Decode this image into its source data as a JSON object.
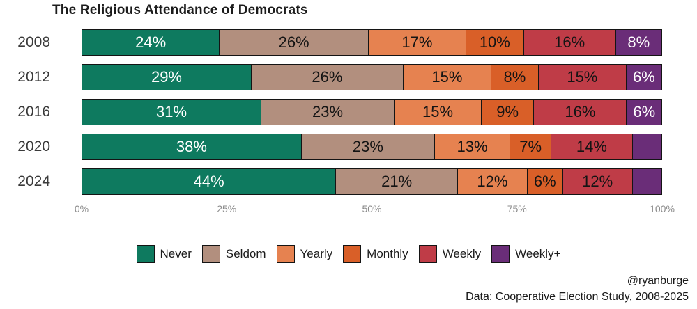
{
  "title": "The Religious Attendance of Democrats",
  "footer": {
    "credit": "@ryanburge",
    "source": "Data: Cooperative Election Study, 2008-2025"
  },
  "chart_data": {
    "type": "bar",
    "orientation": "horizontal",
    "stacked": true,
    "title": "The Religious Attendance of Democrats",
    "categories": [
      "2008",
      "2012",
      "2016",
      "2020",
      "2024"
    ],
    "series": [
      {
        "name": "Never",
        "color": "#0e7a5f",
        "label_color": "#ffffff",
        "values": [
          24,
          29,
          31,
          38,
          44
        ]
      },
      {
        "name": "Seldom",
        "color": "#b28f7e",
        "label_color": "#141414",
        "values": [
          26,
          26,
          23,
          23,
          21
        ]
      },
      {
        "name": "Yearly",
        "color": "#e68250",
        "label_color": "#141414",
        "values": [
          17,
          15,
          15,
          13,
          12
        ]
      },
      {
        "name": "Monthly",
        "color": "#d95f28",
        "label_color": "#141414",
        "values": [
          10,
          8,
          9,
          7,
          6
        ]
      },
      {
        "name": "Weekly",
        "color": "#bf3c47",
        "label_color": "#141414",
        "values": [
          16,
          15,
          16,
          14,
          12
        ]
      },
      {
        "name": "Weekly+",
        "color": "#6a2d78",
        "label_color": "#ffffff",
        "values": [
          8,
          6,
          6,
          5,
          5
        ]
      }
    ],
    "label_suffix": "%",
    "label_min_value": 6,
    "x_tick_labels": [
      "0%",
      "25%",
      "50%",
      "75%",
      "100%"
    ],
    "x_tick_positions": [
      0,
      25,
      50,
      75,
      100
    ],
    "xlim": [
      0,
      100
    ],
    "legend_position": "bottom",
    "grid": false
  }
}
